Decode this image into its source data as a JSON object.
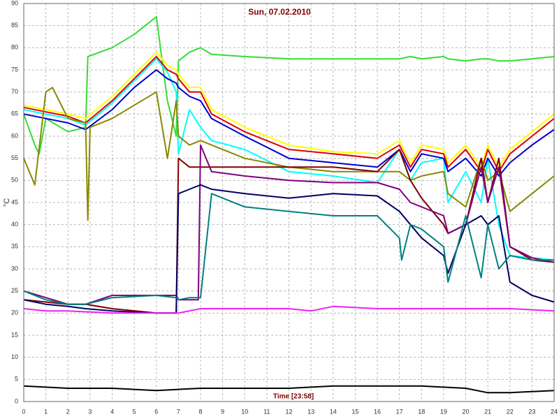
{
  "chart_data": {
    "type": "line",
    "title": "Sun, 07.02.2010",
    "x_label": "Time [23:58]",
    "y_label": "°C",
    "xlim": [
      0,
      24
    ],
    "xticks": [
      0,
      1,
      2,
      3,
      4,
      5,
      6,
      7,
      8,
      9,
      10,
      11,
      12,
      13,
      14,
      15,
      16,
      17,
      18,
      19,
      20,
      21,
      22,
      23,
      24
    ],
    "ylim": [
      0,
      90
    ],
    "yticks": [
      0,
      5,
      10,
      15,
      20,
      25,
      30,
      35,
      40,
      45,
      50,
      55,
      60,
      65,
      70,
      75,
      80,
      85,
      90
    ],
    "grid": true,
    "series": [
      {
        "color": "#33dd33",
        "x": [
          0,
          0.5,
          0.7,
          1,
          2,
          2.8,
          2.9,
          4,
          5,
          6,
          6.5,
          6.9,
          7,
          7.5,
          8,
          8.5,
          10,
          12,
          14,
          16,
          17,
          17.5,
          18,
          19,
          19.2,
          20,
          20.7,
          21,
          21.5,
          22,
          23,
          24
        ],
        "values": [
          65,
          58,
          56,
          64,
          61,
          62,
          78,
          80,
          83,
          87,
          68,
          60,
          77,
          79,
          80,
          78.5,
          78,
          77.5,
          77.5,
          77.5,
          77.5,
          78,
          77.5,
          78,
          77.5,
          77,
          77.5,
          77.5,
          77,
          77,
          77.5,
          78
        ]
      },
      {
        "color": "#ffff00",
        "x": [
          0,
          1,
          2,
          2.8,
          4,
          5,
          6,
          6.5,
          6.9,
          7,
          7.5,
          8,
          8.5,
          10,
          12,
          14,
          16,
          17,
          17.5,
          18,
          19,
          19.2,
          20,
          20.7,
          21,
          21.5,
          22,
          23,
          24
        ],
        "values": [
          67,
          66,
          65,
          64,
          69,
          74,
          79,
          76,
          75,
          74,
          71,
          71,
          66,
          62,
          58,
          56.5,
          56,
          59,
          54,
          58,
          57,
          54,
          58,
          53,
          58,
          53,
          57,
          61,
          65
        ]
      },
      {
        "color": "#dd0000",
        "x": [
          0,
          1,
          2,
          2.8,
          4,
          5,
          6,
          6.5,
          6.9,
          7,
          7.5,
          8,
          8.5,
          10,
          12,
          14,
          16,
          17,
          17.5,
          18,
          19,
          19.2,
          20,
          20.7,
          21,
          21.5,
          22,
          23,
          24
        ],
        "values": [
          66.5,
          65.5,
          64.5,
          63,
          68,
          73,
          78,
          75,
          74,
          73,
          70,
          70,
          65,
          61,
          57,
          56,
          55,
          58,
          53,
          57,
          56,
          53,
          57,
          52,
          57,
          52,
          56,
          60,
          64
        ]
      },
      {
        "color": "#00ffff",
        "x": [
          0,
          1,
          2,
          2.8,
          4,
          5,
          6,
          6.5,
          6.9,
          7,
          7.5,
          8,
          8.5,
          10,
          12,
          14,
          16,
          17,
          17.5,
          18,
          19,
          19.2,
          20,
          20.7,
          21,
          21.5,
          22,
          23,
          24
        ],
        "values": [
          66,
          65,
          64,
          62.5,
          67.5,
          72.5,
          77.5,
          74.5,
          70,
          56,
          66,
          62,
          59,
          57,
          52,
          51,
          49.5,
          57,
          50,
          54,
          55,
          45,
          52,
          45,
          55,
          40,
          33,
          32.5,
          32
        ]
      },
      {
        "color": "#0000cc",
        "x": [
          0,
          1,
          2,
          2.8,
          4,
          5,
          6,
          6.5,
          6.9,
          7,
          7.5,
          8,
          8.5,
          10,
          12,
          14,
          16,
          17,
          17.5,
          18,
          19,
          19.2,
          20,
          20.7,
          21,
          21.5,
          22,
          23,
          24
        ],
        "values": [
          65,
          64,
          63,
          61.5,
          66,
          71,
          75,
          73,
          72,
          71,
          69,
          68,
          64,
          60,
          55,
          54,
          53,
          57,
          52,
          56,
          55,
          52,
          55,
          51,
          55,
          51,
          54,
          58,
          61.5
        ]
      },
      {
        "color": "#888800",
        "x": [
          0,
          0.5,
          1,
          1.3,
          2,
          2.8,
          2.9,
          3,
          4,
          5,
          6,
          6.5,
          6.9,
          7,
          7.5,
          8,
          8.5,
          10,
          12,
          14,
          16,
          17,
          17.5,
          18,
          19,
          19.2,
          20,
          20.7,
          21,
          21.5,
          22,
          23,
          24
        ],
        "values": [
          55,
          49,
          70,
          71,
          64,
          63,
          41,
          62,
          64,
          67,
          70,
          55,
          68,
          60,
          58,
          59,
          58,
          55,
          53,
          52,
          52,
          52,
          50,
          51,
          52,
          47,
          44,
          55,
          50,
          52,
          43,
          47,
          51
        ]
      },
      {
        "color": "#800000",
        "x": [
          0,
          1,
          2,
          2.8,
          4,
          6,
          6.9,
          7,
          7.5,
          8,
          8.5,
          10,
          12,
          14,
          16,
          17,
          17.5,
          18,
          19,
          19.2,
          20,
          20.7,
          21,
          21.5,
          22,
          23,
          24
        ],
        "values": [
          23,
          22.5,
          22,
          22,
          21,
          20,
          20,
          55,
          53,
          53,
          53,
          53,
          53,
          53,
          52,
          57,
          50,
          46,
          40,
          38,
          40,
          55,
          45,
          55,
          35,
          32,
          31.5
        ]
      },
      {
        "color": "#800080",
        "x": [
          0,
          2,
          2.8,
          4,
          6,
          6.9,
          7,
          7.5,
          7.9,
          8,
          8.5,
          10,
          12,
          14,
          16,
          17,
          17.5,
          18,
          19,
          19.2,
          20,
          20.7,
          21,
          21.5,
          22,
          23,
          24
        ],
        "values": [
          25,
          22,
          22,
          24,
          24,
          24,
          23,
          23,
          23,
          58,
          52,
          51,
          50,
          49.5,
          49.5,
          48,
          45,
          44,
          42,
          38,
          40,
          53,
          45,
          53,
          35,
          32.5,
          31.5
        ]
      },
      {
        "color": "#000066",
        "x": [
          0,
          1,
          2,
          2.8,
          4,
          6,
          6.9,
          7,
          7.5,
          8,
          8.5,
          10,
          12,
          14,
          16,
          17,
          17.5,
          18,
          19,
          19.2,
          20,
          20.7,
          21,
          21.5,
          22,
          23,
          24
        ],
        "values": [
          23,
          22,
          21.5,
          21,
          20.5,
          20,
          20,
          47,
          48,
          49,
          48,
          47,
          46,
          47,
          46.5,
          43,
          40,
          37,
          33,
          29,
          40,
          42,
          40,
          42,
          27,
          24,
          22.5
        ]
      },
      {
        "color": "#008080",
        "x": [
          0,
          1,
          2,
          2.8,
          4,
          6,
          6.9,
          7,
          7.5,
          8,
          8.5,
          10,
          12,
          14,
          16,
          17,
          17.1,
          17.5,
          18,
          19,
          19.2,
          20,
          20.7,
          21,
          21.5,
          22,
          23,
          24
        ],
        "values": [
          25,
          23,
          22,
          22,
          23.5,
          24,
          23.5,
          23,
          23.5,
          23.5,
          47,
          44,
          43,
          42,
          42,
          37,
          32,
          40,
          39,
          35,
          27,
          42,
          28,
          40,
          30,
          33,
          32,
          32
        ]
      },
      {
        "color": "#ee22ee",
        "x": [
          0,
          1,
          2,
          4,
          6,
          6.9,
          7,
          8,
          8.5,
          10,
          12,
          13,
          14,
          16,
          18,
          20,
          22,
          24
        ],
        "values": [
          21,
          20.5,
          20.5,
          20,
          20,
          20,
          20,
          21,
          21,
          21,
          21,
          20.5,
          21.5,
          21,
          21,
          21,
          21,
          20.5
        ]
      },
      {
        "color": "#000000",
        "x": [
          0,
          2,
          4,
          6,
          8,
          10,
          12,
          14,
          16,
          18,
          20,
          21,
          22,
          24
        ],
        "values": [
          3.5,
          3,
          3,
          2.5,
          3,
          3,
          3,
          3.5,
          3.5,
          3.5,
          3,
          2,
          2,
          2.5
        ]
      }
    ]
  }
}
